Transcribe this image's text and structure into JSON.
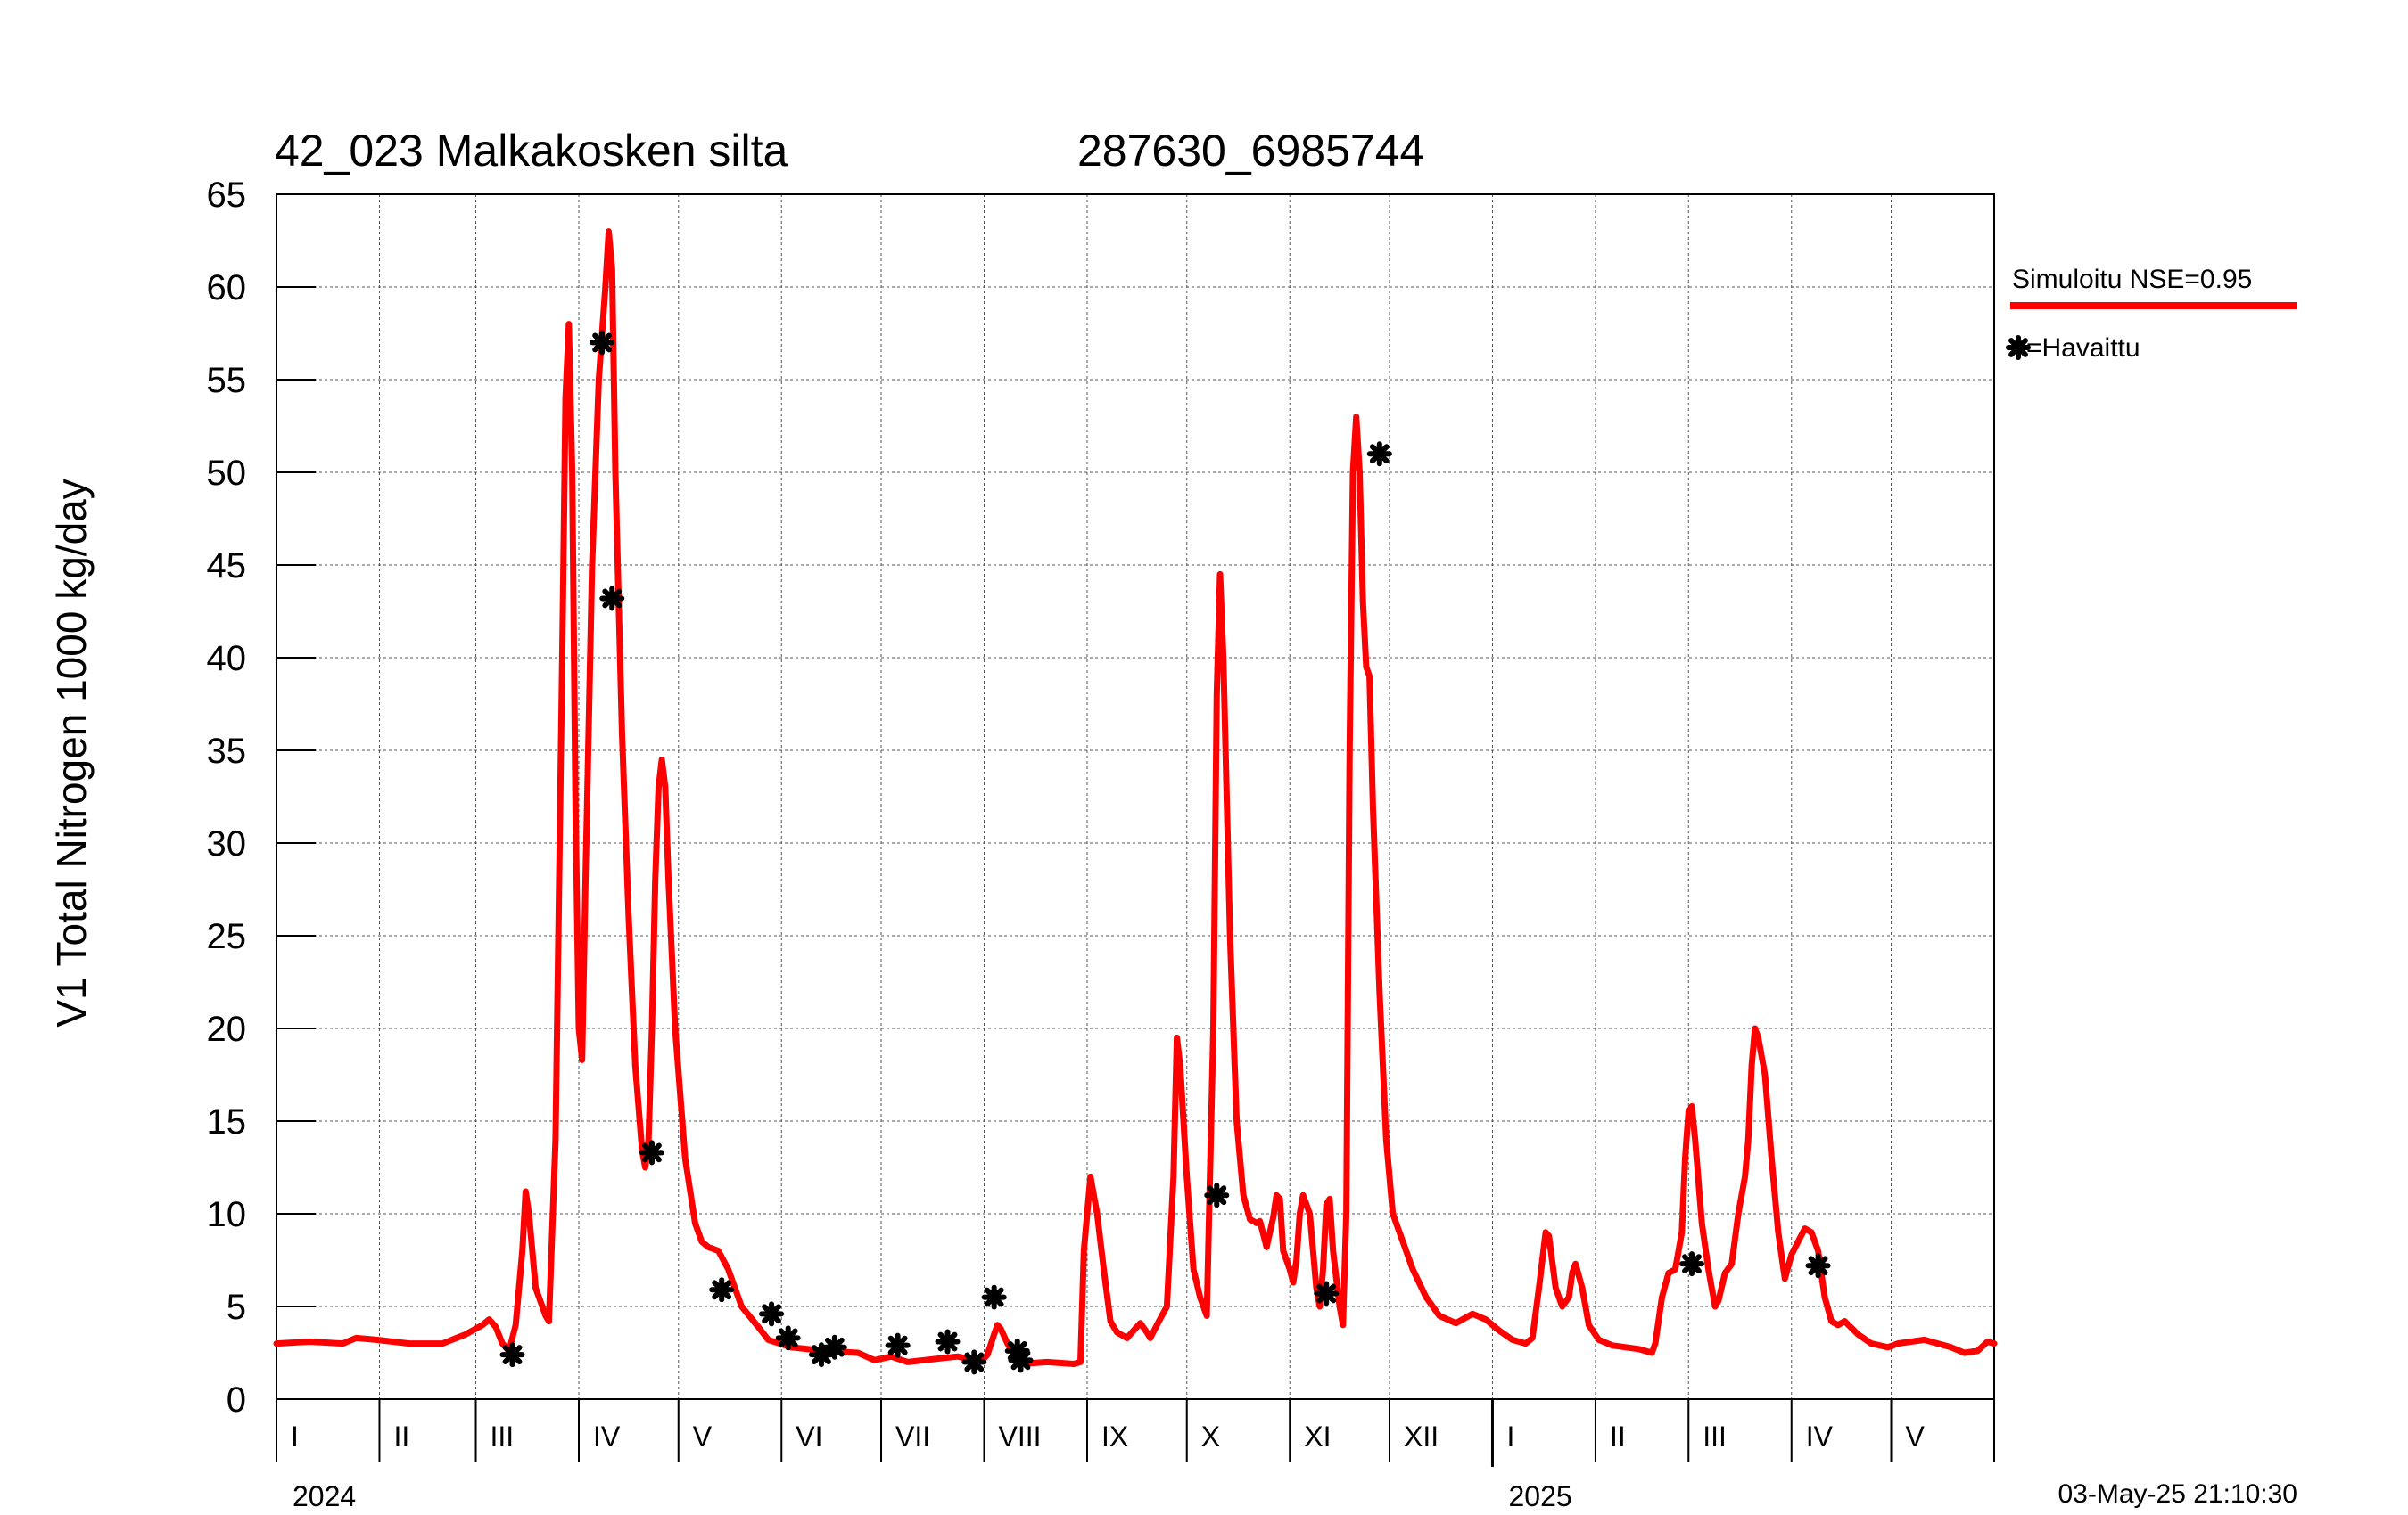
{
  "chart_data": {
    "type": "line",
    "title": "42_023 Malkakosken silta",
    "subtitle": "287630_6985744",
    "ylabel": "V1 Total Nitrogen 1000 kg/day",
    "xlabel": "",
    "ylim": [
      0,
      65
    ],
    "yticks": [
      0,
      5,
      10,
      15,
      20,
      25,
      30,
      35,
      40,
      45,
      50,
      55,
      60,
      65
    ],
    "xlim_days": [
      0,
      517
    ],
    "grid": true,
    "legend_position": "right",
    "months": [
      "I",
      "II",
      "III",
      "IV",
      "V",
      "VI",
      "VII",
      "VIII",
      "IX",
      "X",
      "XI",
      "XII",
      "I",
      "II",
      "III",
      "IV",
      "V"
    ],
    "month_starts_days": [
      0,
      31,
      60,
      91,
      121,
      152,
      182,
      213,
      244,
      274,
      305,
      335,
      366,
      397,
      425,
      456,
      486
    ],
    "years": [
      {
        "label": "2024",
        "day": 0
      },
      {
        "label": "2025",
        "day": 366
      }
    ],
    "timestamp": "03-May-25 21:10:30",
    "series": [
      {
        "name": "Simuloitu NSE=0.95",
        "color": "#ff0000",
        "points": [
          [
            0,
            3.0
          ],
          [
            10,
            3.1
          ],
          [
            20,
            3.0
          ],
          [
            24,
            3.3
          ],
          [
            30,
            3.2
          ],
          [
            40,
            3.0
          ],
          [
            50,
            3.0
          ],
          [
            57,
            3.5
          ],
          [
            62,
            4.0
          ],
          [
            64,
            4.3
          ],
          [
            66,
            3.9
          ],
          [
            68,
            3.0
          ],
          [
            70,
            2.6
          ],
          [
            72,
            4.0
          ],
          [
            74,
            8.0
          ],
          [
            75,
            11.2
          ],
          [
            76,
            10.0
          ],
          [
            78,
            6.0
          ],
          [
            81,
            4.5
          ],
          [
            82,
            4.2
          ],
          [
            84,
            14.0
          ],
          [
            86,
            40.0
          ],
          [
            87,
            54.0
          ],
          [
            88,
            58.0
          ],
          [
            89,
            50.0
          ],
          [
            90,
            32.0
          ],
          [
            91,
            20.0
          ],
          [
            92,
            18.3
          ],
          [
            93,
            28.0
          ],
          [
            95,
            45.0
          ],
          [
            97,
            55.0
          ],
          [
            99,
            60.0
          ],
          [
            100,
            63.0
          ],
          [
            101,
            61.0
          ],
          [
            102,
            50.0
          ],
          [
            103,
            43.0
          ],
          [
            104,
            36.0
          ],
          [
            106,
            26.0
          ],
          [
            108,
            18.0
          ],
          [
            110,
            13.5
          ],
          [
            111,
            12.5
          ],
          [
            112,
            14.0
          ],
          [
            113,
            20.0
          ],
          [
            114,
            28.0
          ],
          [
            115,
            33.0
          ],
          [
            116,
            34.5
          ],
          [
            117,
            33.0
          ],
          [
            118,
            28.0
          ],
          [
            120,
            20.0
          ],
          [
            123,
            13.0
          ],
          [
            126,
            9.5
          ],
          [
            128,
            8.5
          ],
          [
            130,
            8.2
          ],
          [
            133,
            8.0
          ],
          [
            136,
            7.0
          ],
          [
            140,
            5.0
          ],
          [
            145,
            3.9
          ],
          [
            148,
            3.2
          ],
          [
            155,
            2.8
          ],
          [
            165,
            2.6
          ],
          [
            175,
            2.5
          ],
          [
            180,
            2.1
          ],
          [
            185,
            2.3
          ],
          [
            190,
            2.0
          ],
          [
            200,
            2.2
          ],
          [
            205,
            2.3
          ],
          [
            210,
            2.1
          ],
          [
            213,
            2.2
          ],
          [
            214,
            2.4
          ],
          [
            216,
            3.5
          ],
          [
            217,
            4.0
          ],
          [
            218,
            3.8
          ],
          [
            220,
            3.0
          ],
          [
            222,
            2.4
          ],
          [
            224,
            1.9
          ],
          [
            232,
            2.0
          ],
          [
            240,
            1.9
          ],
          [
            242,
            2.0
          ],
          [
            243,
            8.0
          ],
          [
            245,
            12.0
          ],
          [
            247,
            10.0
          ],
          [
            249,
            7.0
          ],
          [
            251,
            4.2
          ],
          [
            253,
            3.6
          ],
          [
            256,
            3.3
          ],
          [
            258,
            3.7
          ],
          [
            260,
            4.1
          ],
          [
            262,
            3.6
          ],
          [
            263,
            3.3
          ],
          [
            265,
            4.0
          ],
          [
            268,
            5.0
          ],
          [
            270,
            12.0
          ],
          [
            271,
            19.5
          ],
          [
            272,
            18.0
          ],
          [
            274,
            12.0
          ],
          [
            276,
            7.0
          ],
          [
            278,
            5.5
          ],
          [
            280,
            4.5
          ],
          [
            282,
            20.0
          ],
          [
            283,
            38.0
          ],
          [
            284,
            44.5
          ],
          [
            285,
            40.0
          ],
          [
            287,
            25.0
          ],
          [
            289,
            15.0
          ],
          [
            291,
            11.0
          ],
          [
            293,
            9.7
          ],
          [
            295,
            9.5
          ],
          [
            296,
            9.6
          ],
          [
            298,
            8.2
          ],
          [
            300,
            9.8
          ],
          [
            301,
            11.0
          ],
          [
            302,
            10.8
          ],
          [
            303,
            8.0
          ],
          [
            305,
            7.0
          ],
          [
            306,
            6.3
          ],
          [
            307,
            7.5
          ],
          [
            308,
            10.0
          ],
          [
            309,
            11.0
          ],
          [
            311,
            10.0
          ],
          [
            313,
            6.0
          ],
          [
            314,
            5.0
          ],
          [
            315,
            7.0
          ],
          [
            316,
            10.5
          ],
          [
            317,
            10.8
          ],
          [
            318,
            8.0
          ],
          [
            320,
            5.0
          ],
          [
            321,
            4.0
          ],
          [
            322,
            10.0
          ],
          [
            323,
            35.0
          ],
          [
            324,
            50.0
          ],
          [
            325,
            53.0
          ],
          [
            326,
            50.0
          ],
          [
            327,
            43.0
          ],
          [
            328,
            39.5
          ],
          [
            329,
            39.0
          ],
          [
            330,
            32.0
          ],
          [
            332,
            22.0
          ],
          [
            334,
            14.0
          ],
          [
            336,
            10.0
          ],
          [
            338,
            9.0
          ],
          [
            342,
            7.0
          ],
          [
            346,
            5.5
          ],
          [
            350,
            4.5
          ],
          [
            355,
            4.1
          ],
          [
            360,
            4.6
          ],
          [
            364,
            4.3
          ],
          [
            368,
            3.7
          ],
          [
            372,
            3.2
          ],
          [
            376,
            3.0
          ],
          [
            378,
            3.3
          ],
          [
            380,
            6.0
          ],
          [
            382,
            9.0
          ],
          [
            383,
            8.8
          ],
          [
            385,
            6.0
          ],
          [
            387,
            5.0
          ],
          [
            389,
            5.5
          ],
          [
            390,
            6.8
          ],
          [
            391,
            7.3
          ],
          [
            393,
            6.0
          ],
          [
            395,
            4.0
          ],
          [
            398,
            3.2
          ],
          [
            402,
            2.9
          ],
          [
            410,
            2.7
          ],
          [
            414,
            2.5
          ],
          [
            415,
            3.0
          ],
          [
            417,
            5.5
          ],
          [
            419,
            6.8
          ],
          [
            421,
            7.0
          ],
          [
            423,
            9.0
          ],
          [
            424,
            13.0
          ],
          [
            425,
            15.5
          ],
          [
            426,
            15.8
          ],
          [
            427,
            14.0
          ],
          [
            429,
            9.5
          ],
          [
            431,
            7.0
          ],
          [
            432,
            6.0
          ],
          [
            433,
            5.0
          ],
          [
            434,
            5.3
          ],
          [
            436,
            6.8
          ],
          [
            438,
            7.3
          ],
          [
            440,
            10.0
          ],
          [
            442,
            12.0
          ],
          [
            443,
            14.0
          ],
          [
            444,
            18.0
          ],
          [
            445,
            20.0
          ],
          [
            446,
            19.5
          ],
          [
            448,
            17.5
          ],
          [
            450,
            13.0
          ],
          [
            452,
            9.0
          ],
          [
            454,
            6.5
          ],
          [
            456,
            7.8
          ],
          [
            458,
            8.5
          ],
          [
            460,
            9.2
          ],
          [
            462,
            9.0
          ],
          [
            464,
            8.0
          ],
          [
            466,
            5.5
          ],
          [
            468,
            4.2
          ],
          [
            470,
            4.0
          ],
          [
            472,
            4.2
          ],
          [
            476,
            3.5
          ],
          [
            480,
            3.0
          ],
          [
            485,
            2.8
          ],
          [
            488,
            3.0
          ],
          [
            492,
            3.1
          ],
          [
            496,
            3.2
          ],
          [
            500,
            3.0
          ],
          [
            504,
            2.8
          ],
          [
            508,
            2.5
          ],
          [
            512,
            2.6
          ],
          [
            515,
            3.1
          ],
          [
            517,
            3.0
          ]
        ]
      },
      {
        "name": "=Havaittu",
        "marker": "asterisk",
        "color": "#000000",
        "points": [
          [
            71,
            2.4
          ],
          [
            98,
            57.0
          ],
          [
            101,
            43.2
          ],
          [
            113,
            13.3
          ],
          [
            134,
            5.9
          ],
          [
            149,
            4.6
          ],
          [
            154,
            3.3
          ],
          [
            164,
            2.4
          ],
          [
            168,
            2.8
          ],
          [
            187,
            2.9
          ],
          [
            202,
            3.1
          ],
          [
            210,
            2.0
          ],
          [
            216,
            5.5
          ],
          [
            223,
            2.6
          ],
          [
            224,
            2.1
          ],
          [
            283,
            11.0
          ],
          [
            316,
            5.7
          ],
          [
            332,
            51.0
          ],
          [
            426,
            7.3
          ],
          [
            464,
            7.2
          ]
        ]
      }
    ]
  }
}
